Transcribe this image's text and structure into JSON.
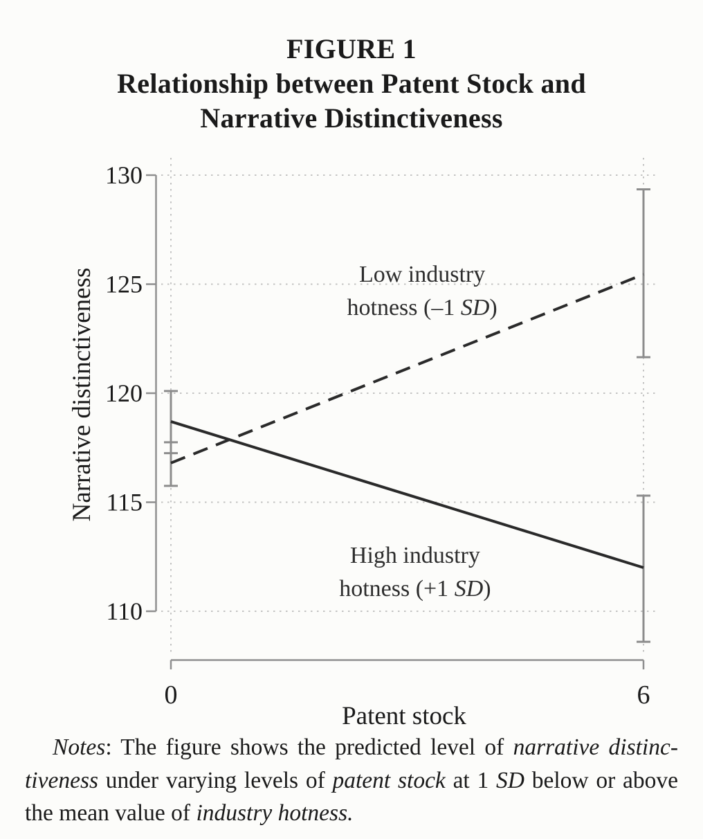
{
  "figure": {
    "label": "FIGURE 1",
    "title_line1": "Relationship between Patent Stock and",
    "title_line2": "Narrative Distinctiveness"
  },
  "chart_data": {
    "type": "line",
    "title": "Relationship between Patent Stock and Narrative Distinctiveness",
    "xlabel": "Patent stock",
    "ylabel": "Narrative distinctiveness",
    "x": [
      0,
      6
    ],
    "xticks": [
      0,
      6
    ],
    "yticks": [
      110,
      115,
      120,
      125,
      130
    ],
    "xlim": [
      0,
      6
    ],
    "ylim": [
      107.8,
      130
    ],
    "grid": "dotted horizontal at yticks and vertical at xticks",
    "legend_position": "inline text annotations next to each line",
    "series": [
      {
        "name": "Low industry hotness (–1 SD)",
        "line_style": "dashed",
        "values": [
          116.8,
          125.45
        ],
        "ci_low": [
          115.75,
          121.65
        ],
        "ci_high": [
          117.75,
          129.35
        ]
      },
      {
        "name": "High industry hotness (+1 SD)",
        "line_style": "solid",
        "values": [
          118.7,
          112.0
        ],
        "ci_low": [
          117.25,
          108.6
        ],
        "ci_high": [
          120.1,
          115.3
        ]
      }
    ],
    "annotations": [
      {
        "target": "label-low-industry-hotness",
        "anchor": {
          "x": 3.19,
          "y": 124.8
        },
        "lines": [
          [
            {
              "t": "Low industry"
            }
          ],
          [
            {
              "t": "hotness (–1 "
            },
            {
              "t": "SD",
              "i": true
            },
            {
              "t": ")"
            }
          ]
        ]
      },
      {
        "target": "label-high-industry-hotness",
        "anchor": {
          "x": 3.1,
          "y": 111.9
        },
        "lines": [
          [
            {
              "t": "High industry"
            }
          ],
          [
            {
              "t": "hotness (+1 "
            },
            {
              "t": "SD",
              "i": true
            },
            {
              "t": ")"
            }
          ]
        ]
      }
    ]
  },
  "notes": {
    "runs": [
      {
        "t": "Notes",
        "i": true
      },
      {
        "t": ": The figure shows the predicted level of "
      },
      {
        "t": "narrative distinc­tiveness",
        "i": true
      },
      {
        "t": " under varying levels of "
      },
      {
        "t": "patent stock",
        "i": true
      },
      {
        "t": " at 1 "
      },
      {
        "t": "SD",
        "i": true
      },
      {
        "t": " below or above the mean value of "
      },
      {
        "t": "industry hotness.",
        "i": true
      }
    ]
  },
  "colors": {
    "page_bg": "#fcfcfa",
    "text": "#1a1a1a",
    "line": "#2a2a2a",
    "axis": "#8f8f8f",
    "error_bar": "#8c8c8c",
    "grid": "#c3c3c3"
  }
}
